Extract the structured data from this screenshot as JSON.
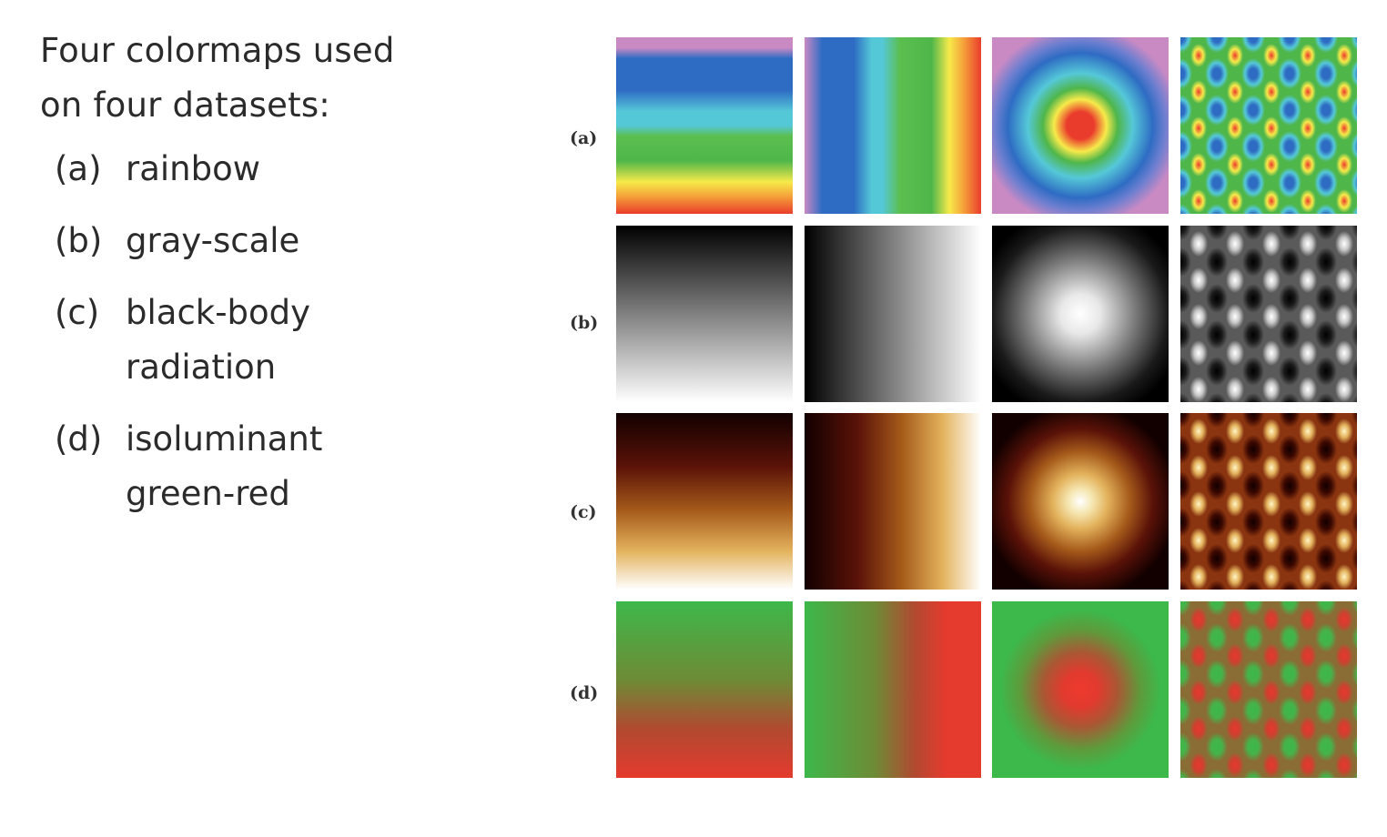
{
  "intro": {
    "line1": "Four colormaps used",
    "line2": "on four datasets:"
  },
  "legend": [
    {
      "tag": "(a)",
      "lines": [
        "rainbow"
      ]
    },
    {
      "tag": "(b)",
      "lines": [
        "gray-scale"
      ]
    },
    {
      "tag": "(c)",
      "lines": [
        "black-body",
        "radiation"
      ]
    },
    {
      "tag": "(d)",
      "lines": [
        "isoluminant",
        "green-red"
      ]
    }
  ],
  "grid": {
    "row_labels": [
      "(a)",
      "(b)",
      "(c)",
      "(d)"
    ],
    "colormaps": {
      "rainbow": [
        "#c98ac4",
        "#2e6cc3",
        "#55c8d8",
        "#4fb64a",
        "#f7ea4a",
        "#f5a23a",
        "#ea3c2c"
      ],
      "gray-scale": [
        "#000000",
        "#808080",
        "#ffffff"
      ],
      "black-body radiation": [
        "#120000",
        "#5a1208",
        "#a55a1a",
        "#e3b25c",
        "#ffffff"
      ],
      "isoluminant green-red": [
        "#3db84a",
        "#6f8a36",
        "#b04a30",
        "#e53a2e"
      ]
    },
    "datasets": [
      "vertical-ramp",
      "horizontal-ramp",
      "radial-bump",
      "periodic-pattern"
    ]
  }
}
